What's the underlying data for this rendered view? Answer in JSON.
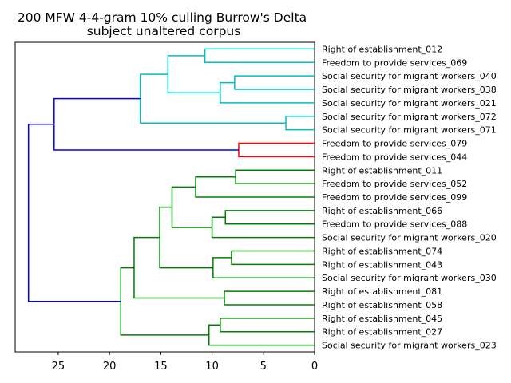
{
  "chart_data": {
    "type": "dendrogram",
    "title": "200 MFW 4-4-gram 10% culling Burrow's Delta",
    "subtitle": "subject unaltered corpus",
    "xlabel": "",
    "ylabel": "",
    "orientation": "left",
    "xlim": [
      29.2,
      0
    ],
    "xticks": [
      25,
      20,
      15,
      10,
      5,
      0
    ],
    "grid": false,
    "colors": {
      "cyan": "#00bfbf",
      "red": "#ff0000",
      "green": "#008000",
      "blue": "#0000ff",
      "axis": "#000000"
    },
    "leaves": [
      "Right of establishment_012",
      "Freedom to provide services_069",
      "Social security for migrant workers_040",
      "Social security for migrant workers_038",
      "Social security for migrant workers_021",
      "Social security for migrant workers_072",
      "Social security for migrant workers_071",
      "Freedom to provide services_079",
      "Freedom to provide services_044",
      "Right of establishment_011",
      "Freedom to provide services_052",
      "Freedom to provide services_099",
      "Right of establishment_066",
      "Freedom to provide services_088",
      "Social security for migrant workers_020",
      "Right of establishment_074",
      "Right of establishment_043",
      "Social security for migrant workers_030",
      "Right of establishment_081",
      "Right of establishment_058",
      "Right of establishment_045",
      "Right of establishment_027",
      "Social security for migrant workers_023"
    ],
    "merges": [
      {
        "id": "c1",
        "left": 0,
        "right": 1,
        "height": 10.7,
        "color": "cyan"
      },
      {
        "id": "c2",
        "left": 2,
        "right": 3,
        "height": 7.8,
        "color": "cyan"
      },
      {
        "id": "c3",
        "left": "c2",
        "right": 4,
        "height": 9.2,
        "color": "cyan"
      },
      {
        "id": "c4",
        "left": "c1",
        "right": "c3",
        "height": 14.3,
        "color": "cyan"
      },
      {
        "id": "c5",
        "left": 5,
        "right": 6,
        "height": 2.8,
        "color": "cyan"
      },
      {
        "id": "c6",
        "left": "c4",
        "right": "c5",
        "height": 17.0,
        "color": "cyan"
      },
      {
        "id": "c7",
        "left": 7,
        "right": 8,
        "height": 7.4,
        "color": "red"
      },
      {
        "id": "c8",
        "left": "c6",
        "right": "c7",
        "height": 25.4,
        "color": "blue"
      },
      {
        "id": "c9",
        "left": 9,
        "right": 10,
        "height": 7.7,
        "color": "green"
      },
      {
        "id": "c10",
        "left": "c9",
        "right": 11,
        "height": 11.6,
        "color": "green"
      },
      {
        "id": "c11",
        "left": 12,
        "right": 13,
        "height": 8.7,
        "color": "green"
      },
      {
        "id": "c12",
        "left": "c11",
        "right": 14,
        "height": 10.0,
        "color": "green"
      },
      {
        "id": "c13",
        "left": "c10",
        "right": "c12",
        "height": 13.9,
        "color": "green"
      },
      {
        "id": "c14",
        "left": 15,
        "right": 16,
        "height": 8.1,
        "color": "green"
      },
      {
        "id": "c15",
        "left": "c14",
        "right": 17,
        "height": 9.9,
        "color": "green"
      },
      {
        "id": "c16",
        "left": "c13",
        "right": "c15",
        "height": 15.1,
        "color": "green"
      },
      {
        "id": "c17",
        "left": 18,
        "right": 19,
        "height": 8.8,
        "color": "green"
      },
      {
        "id": "c18",
        "left": "c16",
        "right": "c17",
        "height": 17.6,
        "color": "green"
      },
      {
        "id": "c19",
        "left": 20,
        "right": 21,
        "height": 9.2,
        "color": "green"
      },
      {
        "id": "c20",
        "left": "c19",
        "right": 22,
        "height": 10.3,
        "color": "green"
      },
      {
        "id": "c21",
        "left": "c18",
        "right": "c20",
        "height": 18.9,
        "color": "green"
      },
      {
        "id": "c22",
        "left": "c8",
        "right": "c21",
        "height": 27.9,
        "color": "blue"
      }
    ]
  }
}
